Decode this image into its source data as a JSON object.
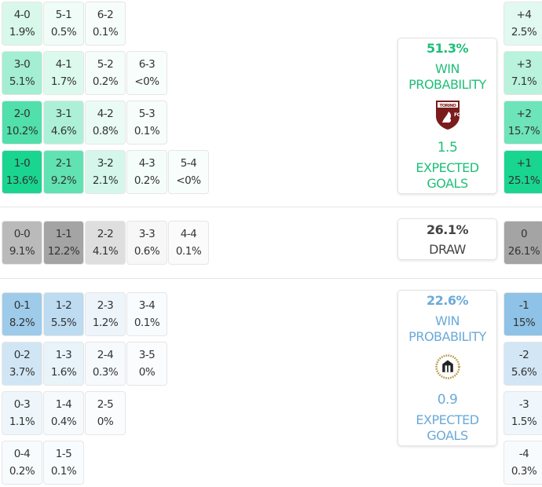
{
  "colors": {
    "home": "#00d084",
    "draw": "#8c8c8c",
    "away": "#5aa5dc",
    "home_text": "#1fbf78",
    "away_text": "#6aaad8",
    "draw_text": "#444444"
  },
  "home_grid": [
    [
      {
        "s": "4-0",
        "p": "1.9%"
      },
      {
        "s": "5-1",
        "p": "0.5%"
      },
      {
        "s": "6-2",
        "p": "0.1%"
      }
    ],
    [
      {
        "s": "3-0",
        "p": "5.1%"
      },
      {
        "s": "4-1",
        "p": "1.7%"
      },
      {
        "s": "5-2",
        "p": "0.2%"
      },
      {
        "s": "6-3",
        "p": "<0%"
      }
    ],
    [
      {
        "s": "2-0",
        "p": "10.2%"
      },
      {
        "s": "3-1",
        "p": "4.6%"
      },
      {
        "s": "4-2",
        "p": "0.8%"
      },
      {
        "s": "5-3",
        "p": "0.1%"
      }
    ],
    [
      {
        "s": "1-0",
        "p": "13.6%"
      },
      {
        "s": "2-1",
        "p": "9.2%"
      },
      {
        "s": "3-2",
        "p": "2.1%"
      },
      {
        "s": "4-3",
        "p": "0.2%"
      },
      {
        "s": "5-4",
        "p": "<0%"
      }
    ]
  ],
  "draw_grid": [
    [
      {
        "s": "0-0",
        "p": "9.1%"
      },
      {
        "s": "1-1",
        "p": "12.2%"
      },
      {
        "s": "2-2",
        "p": "4.1%"
      },
      {
        "s": "3-3",
        "p": "0.6%"
      },
      {
        "s": "4-4",
        "p": "0.1%"
      }
    ]
  ],
  "away_grid": [
    [
      {
        "s": "0-1",
        "p": "8.2%"
      },
      {
        "s": "1-2",
        "p": "5.5%"
      },
      {
        "s": "2-3",
        "p": "1.2%"
      },
      {
        "s": "3-4",
        "p": "0.1%"
      }
    ],
    [
      {
        "s": "0-2",
        "p": "3.7%"
      },
      {
        "s": "1-3",
        "p": "1.6%"
      },
      {
        "s": "2-4",
        "p": "0.3%"
      },
      {
        "s": "3-5",
        "p": "0%"
      }
    ],
    [
      {
        "s": "0-3",
        "p": "1.1%"
      },
      {
        "s": "1-4",
        "p": "0.4%"
      },
      {
        "s": "2-5",
        "p": "0%"
      }
    ],
    [
      {
        "s": "0-4",
        "p": "0.2%"
      },
      {
        "s": "1-5",
        "p": "0.1%"
      }
    ]
  ],
  "margins_home": [
    {
      "s": "+4",
      "p": "2.5%"
    },
    {
      "s": "+3",
      "p": "7.1%"
    },
    {
      "s": "+2",
      "p": "15.7%"
    },
    {
      "s": "+1",
      "p": "25.1%"
    }
  ],
  "margins_draw": [
    {
      "s": "0",
      "p": "26.1%"
    }
  ],
  "margins_away": [
    {
      "s": "-1",
      "p": "15%"
    },
    {
      "s": "-2",
      "p": "5.6%"
    },
    {
      "s": "-3",
      "p": "1.5%"
    },
    {
      "s": "-4",
      "p": "0.3%"
    }
  ],
  "home_summary": {
    "win_pct": "51.3%",
    "win_label1": "WIN",
    "win_label2": "PROBABILITY",
    "xg": "1.5",
    "xg_label1": "EXPECTED",
    "xg_label2": "GOALS",
    "logo": "TORINO FC 1906"
  },
  "draw_summary": {
    "pct": "26.1%",
    "label": "DRAW"
  },
  "away_summary": {
    "win_pct": "22.6%",
    "win_label1": "WIN",
    "win_label2": "PROBABILITY",
    "xg": "0.9",
    "xg_label1": "EXPECTED",
    "xg_label2": "GOALS",
    "logo": "Udinese 1896"
  }
}
